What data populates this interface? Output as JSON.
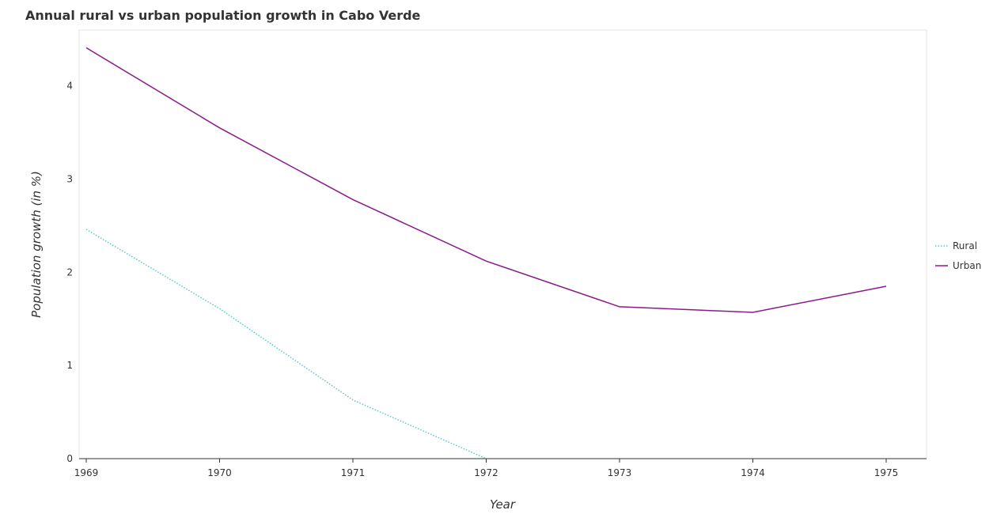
{
  "chart_data": {
    "type": "line",
    "title": "Annual rural vs urban population growth in Cabo Verde",
    "xlabel": "Year",
    "ylabel": "Population growth (in %)",
    "categories": [
      "1969",
      "1970",
      "1971",
      "1972",
      "1973",
      "1974",
      "1975"
    ],
    "yticks": [
      "0",
      "1",
      "2",
      "3",
      "4"
    ],
    "ylim": [
      0,
      4.6
    ],
    "legend_position": "right",
    "grid": false,
    "series": [
      {
        "name": "Rural",
        "color": "#5bc8c8",
        "dash": "dot",
        "values": [
          2.46,
          1.61,
          0.63,
          0,
          null,
          null,
          null
        ]
      },
      {
        "name": "Urban",
        "color": "#8b1a89",
        "dash": "solid",
        "values": [
          4.41,
          3.55,
          2.78,
          2.12,
          1.63,
          1.57,
          1.85
        ]
      }
    ]
  }
}
